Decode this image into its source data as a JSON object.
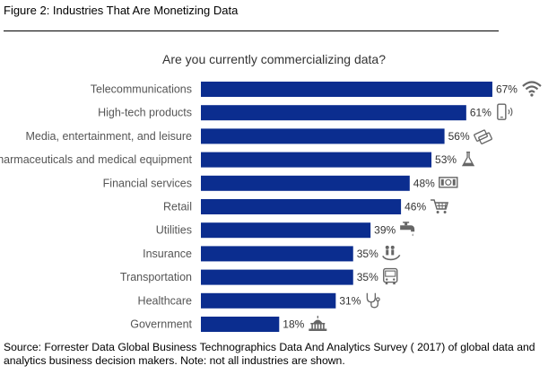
{
  "figure_title": "Figure 2: Industries That Are Monetizing Data",
  "source_note": "Source: Forrester Data Global Business Technographics Data And Analytics Survey ( 2017) of global data and analytics business decision makers. Note: not all industries are shown.",
  "colors": {
    "bar": "#0b2d8f",
    "label": "#555555",
    "value": "#333333",
    "icon": "#666666"
  },
  "chart_data": {
    "type": "bar",
    "orientation": "horizontal",
    "title": "Are you currently commercializing data?",
    "xlabel": "",
    "ylabel": "",
    "xlim": [
      0,
      100
    ],
    "grid": false,
    "categories": [
      "Telecommunications",
      "High-tech products",
      "Media, entertainment, and leisure",
      "Pharmaceuticals and medical equipment",
      "Financial services",
      "Retail",
      "Utilities",
      "Insurance",
      "Transportation",
      "Healthcare",
      "Government"
    ],
    "values": [
      67,
      61,
      56,
      53,
      48,
      46,
      39,
      35,
      35,
      31,
      18
    ],
    "value_labels": [
      "67%",
      "61%",
      "56%",
      "53%",
      "48%",
      "46%",
      "39%",
      "35%",
      "35%",
      "31%",
      "18%"
    ],
    "icons": [
      "wifi-icon",
      "smartphone-icon",
      "tickets-icon",
      "flask-icon",
      "banknote-icon",
      "shopping-cart-icon",
      "faucet-icon",
      "hand-with-people-icon",
      "bus-icon",
      "stethoscope-icon",
      "capitol-building-icon"
    ]
  }
}
